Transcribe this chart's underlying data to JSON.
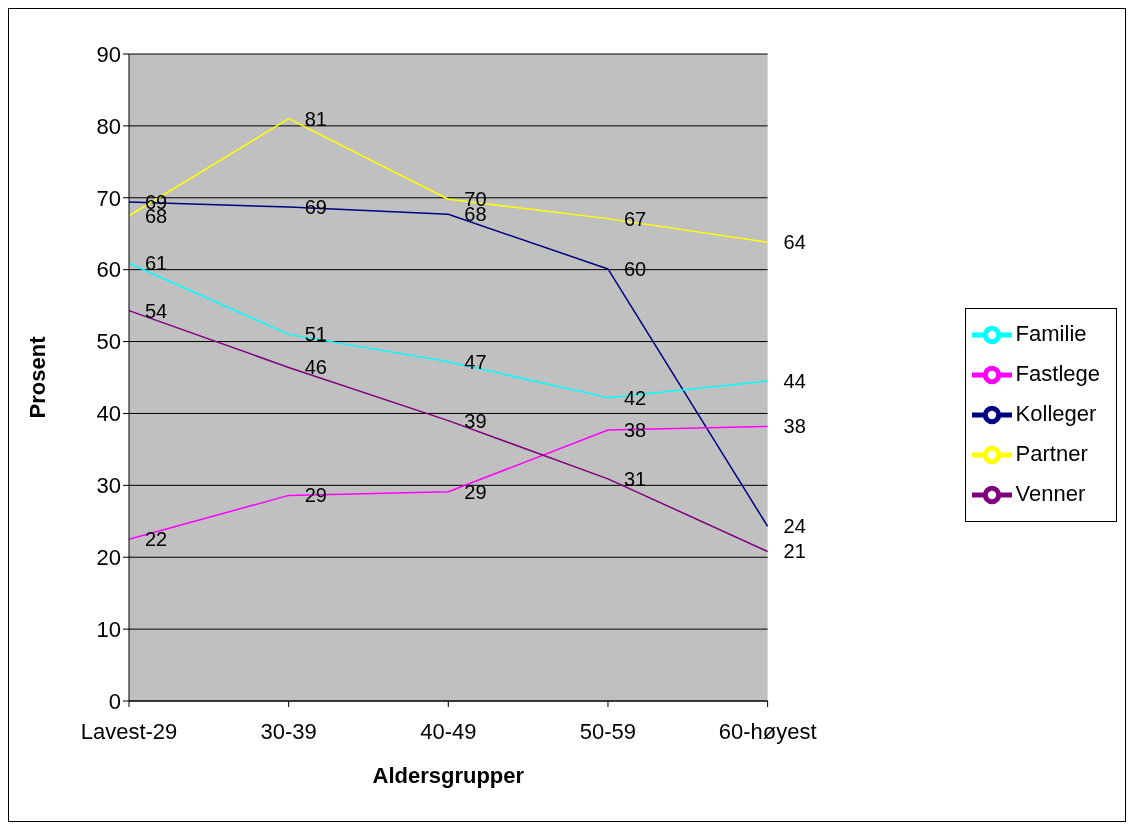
{
  "chart_data": {
    "type": "line",
    "xlabel": "Aldersgrupper",
    "ylabel": "Prosent",
    "categories": [
      "Lavest-29",
      "30-39",
      "40-49",
      "50-59",
      "60-høyest"
    ],
    "series": [
      {
        "name": "Kolleger",
        "color": "#000080",
        "values": [
          69.4,
          68.7,
          67.7,
          60.1,
          24.3
        ],
        "value_labels": [
          "69",
          "69",
          "68",
          "60",
          "24"
        ]
      },
      {
        "name": "Fastlege",
        "color": "#ff00ff",
        "values": [
          22.5,
          28.6,
          29.1,
          37.7,
          38.2
        ],
        "value_labels": [
          "22",
          "29",
          "29",
          "38",
          "38"
        ]
      },
      {
        "name": "Partner",
        "color": "#ffff00",
        "values": [
          67.5,
          81.0,
          69.8,
          67.1,
          63.8
        ],
        "value_labels": [
          "68",
          "81",
          "70",
          "67",
          "64"
        ]
      },
      {
        "name": "Familie",
        "color": "#00ffff",
        "values": [
          60.9,
          51.0,
          47.2,
          42.2,
          44.5
        ],
        "value_labels": [
          "61",
          "51",
          "47",
          "42",
          "44"
        ]
      },
      {
        "name": "Venner",
        "color": "#800080",
        "values": [
          54.3,
          46.4,
          39.0,
          30.9,
          20.8
        ],
        "value_labels": [
          "54",
          "46",
          "39",
          "31",
          "21"
        ]
      }
    ],
    "ylim": [
      0,
      90
    ],
    "yticks": [
      0,
      10,
      20,
      30,
      40,
      50,
      60,
      70,
      80,
      90
    ],
    "grid": "y",
    "legend": "right",
    "marker": "none",
    "line_style": "solid"
  }
}
